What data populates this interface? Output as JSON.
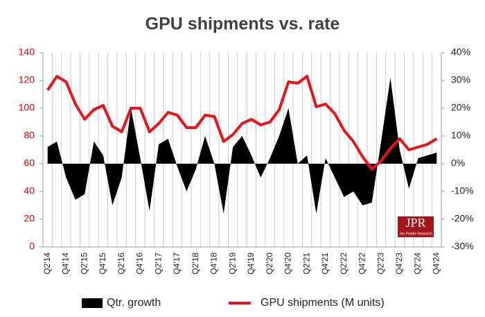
{
  "chart_data": {
    "type": "combo",
    "title": "GPU shipments vs. rate",
    "categories": [
      "Q2'14",
      null,
      "Q4'14",
      null,
      "Q2'15",
      null,
      "Q4'15",
      null,
      "Q2'16",
      null,
      "Q4'16",
      null,
      "Q2'17",
      null,
      "Q4'17",
      null,
      "Q2'18",
      null,
      "Q4'18",
      null,
      "Q2'19",
      null,
      "Q4'19",
      null,
      "Q2'20",
      null,
      "Q4'20",
      null,
      "Q2'21",
      null,
      "Q4'21",
      null,
      "Q2'22",
      null,
      "Q4'22",
      null,
      "Q2'23",
      null,
      "Q4'23",
      null,
      "Q2'24",
      null,
      "Q4'24"
    ],
    "series": [
      {
        "name": "Qtr. growth",
        "type": "area",
        "axis": "y2",
        "color": "#000000",
        "values": [
          6,
          8,
          -5,
          -13,
          -11,
          8,
          3,
          -15,
          -5,
          20,
          2,
          -17,
          7,
          9,
          -1,
          -10,
          -2,
          10,
          0,
          -18,
          6,
          10,
          3,
          -5,
          2,
          10,
          20,
          0,
          3,
          -18,
          2,
          -5,
          -12,
          -10,
          -15,
          -14,
          8,
          31,
          5,
          -9,
          2,
          3,
          4
        ]
      },
      {
        "name": "GPU shipments (M units)",
        "type": "line",
        "axis": "y",
        "color": "#e8141a",
        "values": [
          113,
          123,
          119,
          103,
          92,
          99,
          102,
          87,
          83,
          100,
          100,
          83,
          89,
          97,
          95,
          86,
          86,
          95,
          94,
          76,
          81,
          89,
          92,
          88,
          90,
          99,
          119,
          118,
          123,
          101,
          103,
          96,
          84,
          76,
          65,
          56,
          62,
          71,
          78,
          70,
          72,
          74,
          78
        ]
      }
    ],
    "ylim": [
      0,
      140
    ],
    "yticks": [
      0,
      20,
      40,
      60,
      80,
      100,
      120,
      140
    ],
    "ytick_color": "#e00000",
    "y2lim": [
      -30,
      40
    ],
    "y2ticks": [
      {
        "value": -30,
        "label": "-30%"
      },
      {
        "value": -20,
        "label": "-20%"
      },
      {
        "value": -10,
        "label": "-10%"
      },
      {
        "value": 0,
        "label": "0%"
      },
      {
        "value": 10,
        "label": "10%"
      },
      {
        "value": 20,
        "label": "20%"
      },
      {
        "value": 30,
        "label": "30%"
      },
      {
        "value": 40,
        "label": "40%"
      }
    ],
    "grid": "x",
    "legend": "bottom",
    "logo": {
      "main": "JPR",
      "sub": "Jon Peddie Research"
    }
  }
}
